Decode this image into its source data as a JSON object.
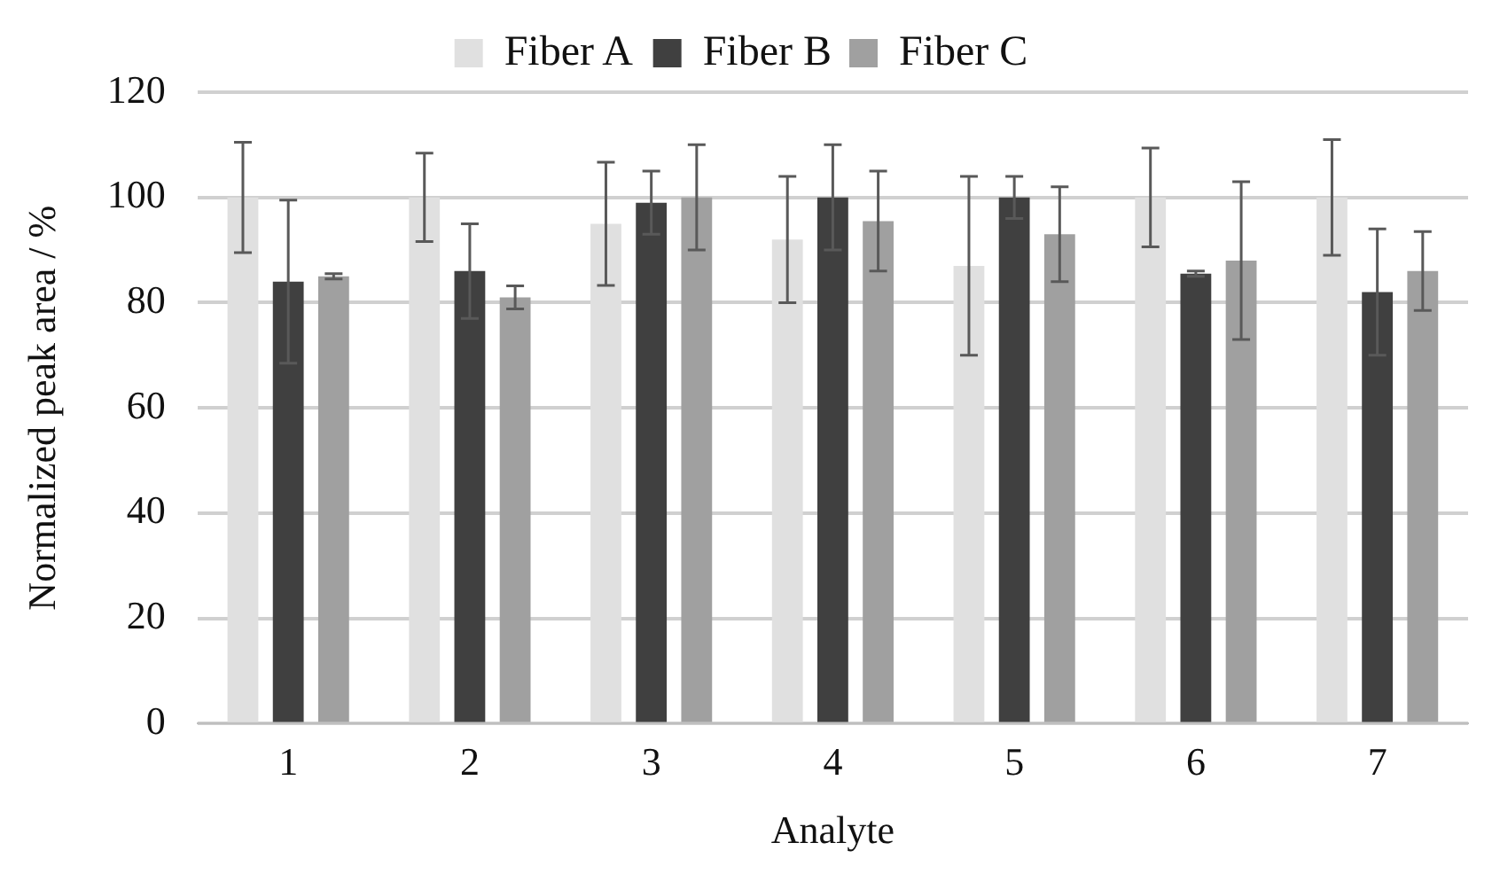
{
  "chart_data": {
    "type": "bar",
    "xlabel": "Analyte",
    "ylabel": "Normalized peak area / %",
    "categories": [
      "1",
      "2",
      "3",
      "4",
      "5",
      "6",
      "7"
    ],
    "series": [
      {
        "name": "Fiber A",
        "color": "#e0e0e0",
        "values": [
          100,
          100,
          95,
          92,
          87,
          100,
          100
        ],
        "errors": [
          10.5,
          8.4,
          11.7,
          12,
          17,
          9.4,
          11
        ]
      },
      {
        "name": "Fiber B",
        "color": "#404040",
        "values": [
          84,
          86,
          99,
          100,
          100,
          85.5,
          82
        ],
        "errors": [
          15.5,
          9,
          6,
          10,
          4,
          0.5,
          12
        ]
      },
      {
        "name": "Fiber C",
        "color": "#a0a0a0",
        "values": [
          85,
          81,
          100,
          95.5,
          93,
          88,
          86
        ],
        "errors": [
          0.5,
          2.2,
          10,
          9.5,
          9,
          15,
          7.5
        ]
      }
    ],
    "ylim": [
      0,
      120
    ],
    "yticks": [
      0,
      20,
      40,
      60,
      80,
      100,
      120
    ],
    "grid": "y",
    "legend": "top"
  }
}
